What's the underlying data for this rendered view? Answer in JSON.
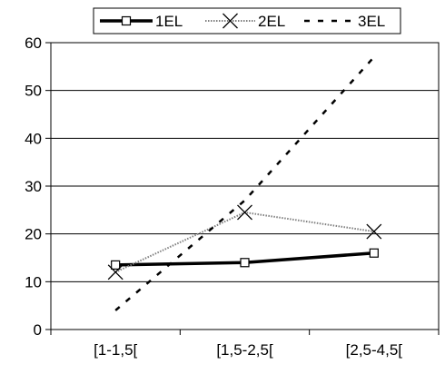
{
  "chart_data": {
    "type": "line",
    "categories": [
      "[1-1,5[",
      "[1,5-2,5[",
      "[2,5-4,5["
    ],
    "series": [
      {
        "name": "1EL",
        "values": [
          13.5,
          14,
          16
        ],
        "color": "#000000",
        "style": "solid-thick",
        "marker": "square"
      },
      {
        "name": "2EL",
        "values": [
          12,
          24.5,
          20.5
        ],
        "color": "#808080",
        "style": "dotted-thin",
        "marker": "x"
      },
      {
        "name": "3EL",
        "values": [
          4,
          27,
          57
        ],
        "color": "#000000",
        "style": "dashed",
        "marker": "none"
      }
    ],
    "yticks": [
      "0",
      "10",
      "20",
      "30",
      "40",
      "50",
      "60"
    ],
    "ylim": [
      0,
      60
    ],
    "grid": "horizontal",
    "legend": "top"
  }
}
